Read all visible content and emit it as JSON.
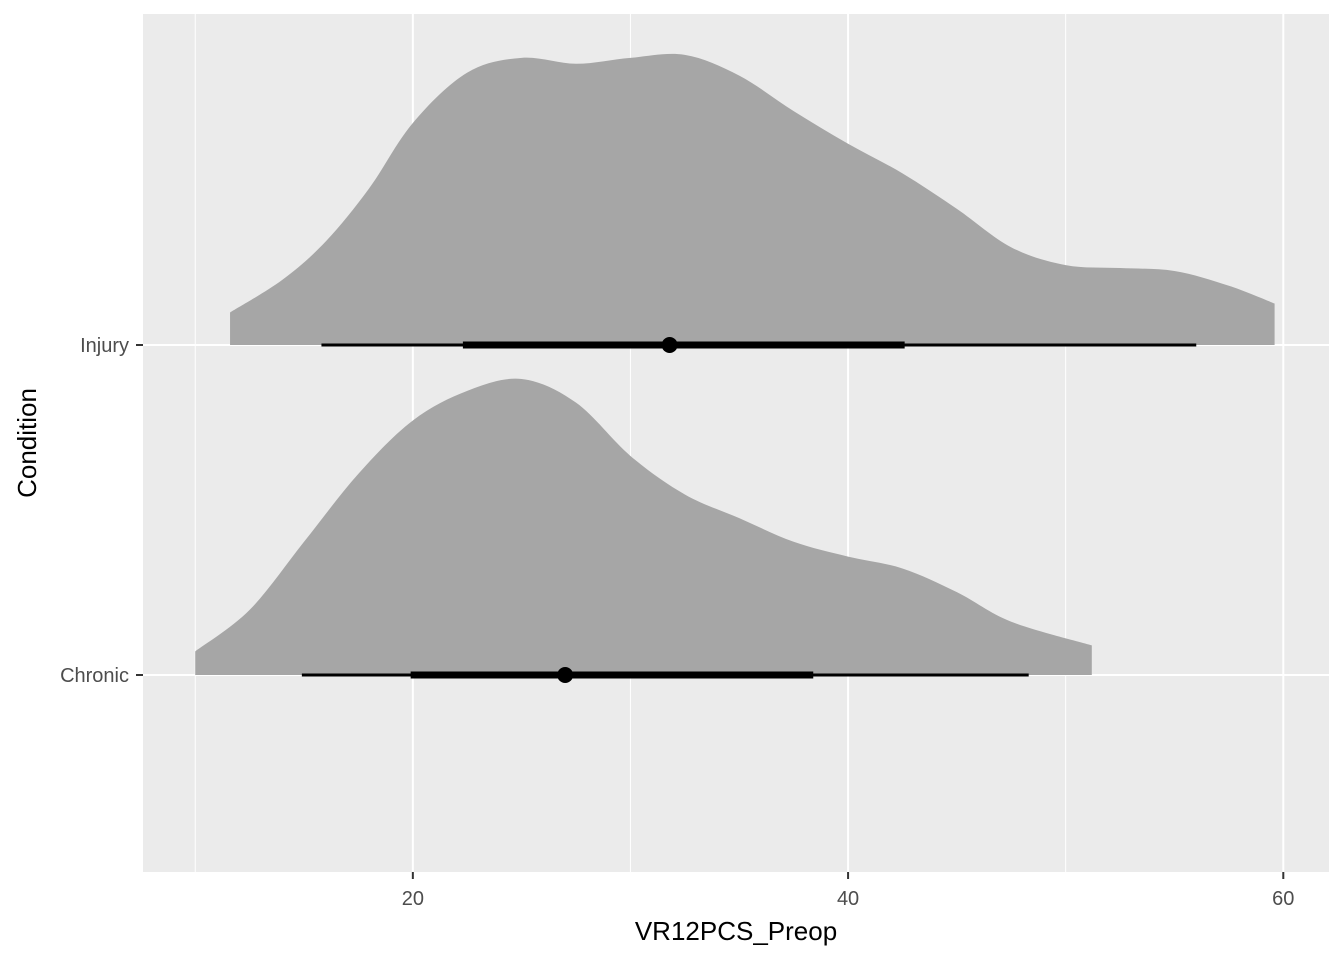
{
  "chart_data": {
    "type": "halfeye",
    "xlabel": "VR12PCS_Preop",
    "ylabel": "Condition",
    "xlim": [
      7.6,
      62.1
    ],
    "x_ticks": [
      20,
      40,
      60
    ],
    "x_minor_ticks": [
      10,
      30,
      50
    ],
    "categories": [
      "Chronic",
      "Injury"
    ],
    "grid": true,
    "colors": {
      "panel": "#ebebeb",
      "grid": "#ffffff",
      "density": "#a6a6a6",
      "interval": "#000000",
      "text": "#4d4d4d"
    },
    "series": [
      {
        "category": "Chronic",
        "point": 27.0,
        "interval_66": [
          19.9,
          38.4
        ],
        "interval_95": [
          14.9,
          48.3
        ],
        "density_x": [
          10.0,
          12.5,
          15.0,
          17.5,
          20.0,
          22.5,
          25.0,
          27.5,
          30.0,
          32.5,
          35.0,
          37.5,
          40.0,
          42.5,
          45.0,
          47.5,
          51.2
        ],
        "density_y": [
          0.08,
          0.22,
          0.45,
          0.68,
          0.86,
          0.96,
          1.0,
          0.92,
          0.74,
          0.61,
          0.53,
          0.45,
          0.4,
          0.36,
          0.28,
          0.18,
          0.1
        ]
      },
      {
        "category": "Injury",
        "point": 31.8,
        "interval_66": [
          22.3,
          42.6
        ],
        "interval_95": [
          15.8,
          56.0
        ],
        "density_x": [
          11.6,
          14.0,
          16.0,
          18.0,
          20.0,
          22.5,
          25.0,
          27.5,
          30.0,
          32.5,
          35.0,
          37.5,
          40.0,
          42.5,
          45.0,
          47.5,
          50.0,
          52.5,
          55.0,
          57.5,
          59.6
        ],
        "density_y": [
          0.11,
          0.22,
          0.35,
          0.53,
          0.75,
          0.92,
          0.97,
          0.95,
          0.97,
          0.98,
          0.91,
          0.79,
          0.68,
          0.58,
          0.46,
          0.33,
          0.27,
          0.26,
          0.25,
          0.2,
          0.14
        ]
      }
    ]
  }
}
